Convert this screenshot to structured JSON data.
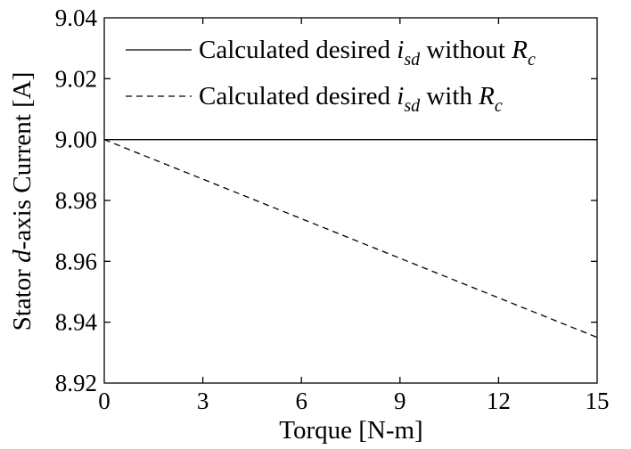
{
  "chart_data": {
    "type": "line",
    "xlabel": "Torque [N-m]",
    "ylabel": {
      "part1": "Stator ",
      "italic": "d",
      "part2": "-axis Current [A]"
    },
    "xlim": [
      0,
      15
    ],
    "ylim": [
      8.92,
      9.04
    ],
    "xticks": [
      "0",
      "3",
      "6",
      "9",
      "12",
      "15"
    ],
    "yticks": [
      "8.92",
      "8.94",
      "8.96",
      "8.98",
      "9.00",
      "9.02",
      "9.04"
    ],
    "grid": false,
    "legend_position": "top-right",
    "series": [
      {
        "name": "Calculated desired i_sd without R_c",
        "legend": {
          "prefix": "Calculated desired ",
          "var": "i",
          "var_sub": "sd",
          "mid": " without ",
          "var2": "R",
          "var2_sub": "c"
        },
        "line_style": "solid",
        "x": [
          0,
          15
        ],
        "y": [
          9.0,
          9.0
        ]
      },
      {
        "name": "Calculated desired i_sd with R_c",
        "legend": {
          "prefix": "Calculated desired ",
          "var": "i",
          "var_sub": "sd",
          "mid": " with ",
          "var2": "R",
          "var2_sub": "c"
        },
        "line_style": "dashed",
        "x": [
          0,
          3,
          6,
          9,
          12,
          15
        ],
        "y": [
          9.0,
          8.987,
          8.974,
          8.961,
          8.948,
          8.935
        ]
      }
    ]
  }
}
